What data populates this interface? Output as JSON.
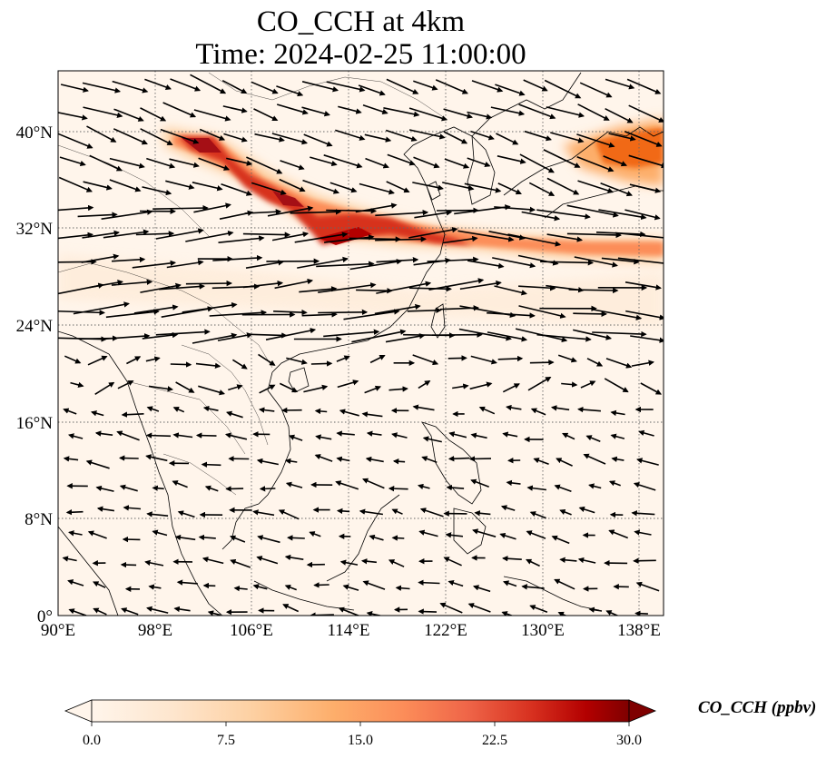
{
  "title": {
    "line1": "CO_CCH at 4km",
    "line2": "Time: 2024-02-25 11:00:00"
  },
  "map": {
    "lon_range": [
      90,
      140
    ],
    "lat_range": [
      0,
      45
    ],
    "lon_ticks": [
      "90°E",
      "98°E",
      "106°E",
      "114°E",
      "122°E",
      "130°E",
      "138°E"
    ],
    "lat_ticks": [
      "0°",
      "8°N",
      "16°N",
      "24°N",
      "32°N",
      "40°N"
    ],
    "gridlines": true,
    "field": "CO_CCH",
    "plume_color_high": "#a50f15",
    "plume_color_mid": "#ef6548",
    "background_color": "#fff5eb"
  },
  "colorbar": {
    "label": "CO_CCH (ppbv)",
    "ticks": [
      "0.0",
      "7.5",
      "15.0",
      "22.5",
      "30.0"
    ],
    "min": 0,
    "max": 30,
    "extend": "both",
    "colors": [
      "#fff5eb",
      "#fee6ce",
      "#fdd0a2",
      "#fdae6b",
      "#fd8d3c",
      "#f16913",
      "#d94801",
      "#a63603",
      "#7f2704"
    ]
  }
}
